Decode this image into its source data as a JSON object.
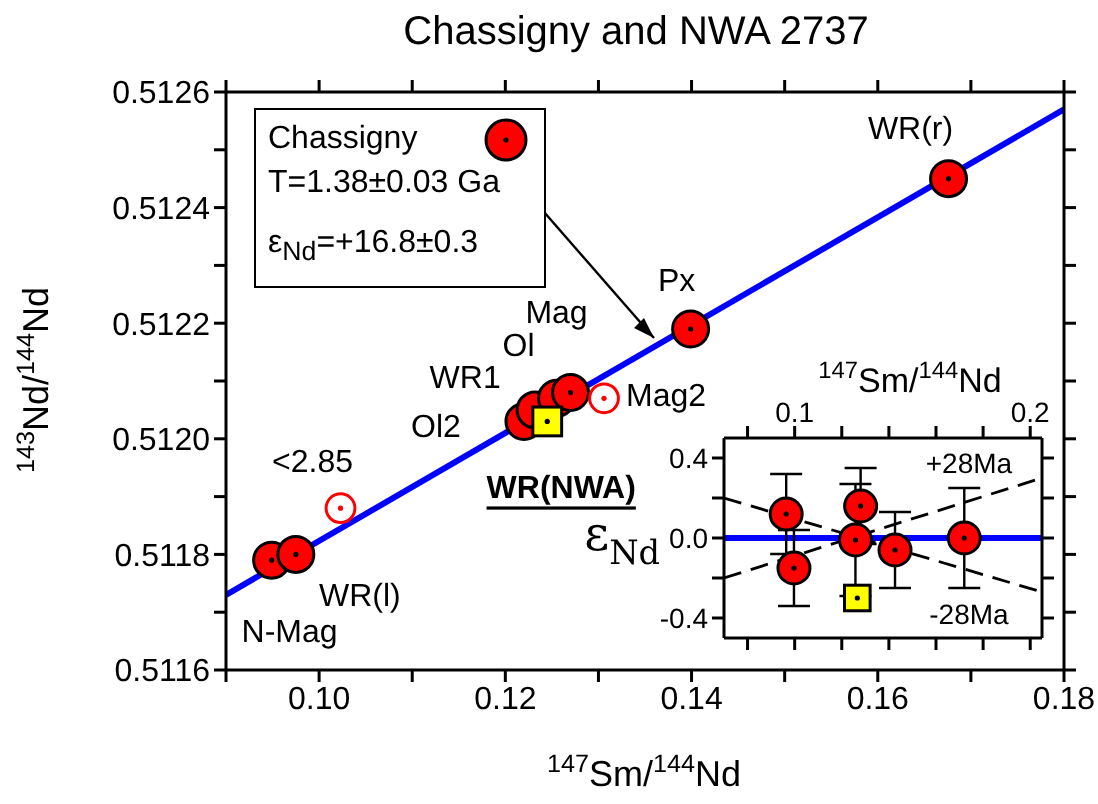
{
  "chart_data": [
    {
      "type": "scatter",
      "title": "Chassigny and NWA 2737",
      "xlabel": "$^{147}$Sm/$^{144}$Nd",
      "ylabel": "$^{143}$Nd/$^{144}$Nd",
      "xlim": [
        0.09,
        0.18
      ],
      "xticks": [
        {
          "value": 0.09,
          "label": null
        },
        {
          "value": 0.1,
          "label": "0.10"
        },
        {
          "value": 0.11,
          "label": null
        },
        {
          "value": 0.12,
          "label": "0.12"
        },
        {
          "value": 0.13,
          "label": null
        },
        {
          "value": 0.14,
          "label": "0.14"
        },
        {
          "value": 0.15,
          "label": null
        },
        {
          "value": 0.16,
          "label": "0.16"
        },
        {
          "value": 0.17,
          "label": null
        },
        {
          "value": 0.18,
          "label": "0.18"
        }
      ],
      "ylim": [
        0.5116,
        0.5126
      ],
      "yticks": [
        0.5116,
        {
          "value": 0.5117,
          "label": null
        },
        0.5118,
        {
          "value": 0.5119,
          "label": null
        },
        {
          "value": 0.512,
          "label": "0.5120"
        },
        {
          "value": 0.5121,
          "label": null
        },
        0.5122,
        {
          "value": 0.5123,
          "label": null
        },
        0.5124,
        {
          "value": 0.5125,
          "label": null
        },
        0.5126
      ],
      "grid": false,
      "legend": "top left",
      "marker": "circle",
      "series": [
        {
          "name": "Chassigny",
          "color": "#ff0000",
          "x": [
            0.0949,
            0.0975,
            0.122,
            0.1232,
            0.1255,
            0.127,
            0.1399,
            0.1676
          ],
          "values": [
            0.51179,
            0.5118,
            0.51203,
            0.51205,
            0.51207,
            0.51208,
            0.51219,
            0.51245
          ]
        },
        {
          "color": "#ff0000",
          "x": [
            0.1023,
            0.1306
          ],
          "values": [
            0.51188,
            0.51207
          ]
        },
        {
          "name": "WR(NWA)",
          "color": "#ffff00",
          "marker": "square",
          "x": [
            0.1245
          ],
          "values": [
            0.51203
          ]
        },
        {
          "type": "line",
          "color": "#0000ff",
          "marker": "none",
          "x": [
            0.09,
            0.18
          ],
          "values": [
            0.51173,
            0.51257
          ]
        }
      ],
      "annotations": [
        "T=1.38±0.03 Ga",
        "ε$_{Nd}$=+16.8±0.3",
        {
          "text": "N-Mag",
          "x": 0.0949,
          "y": 0.51179
        },
        {
          "text": "WR(l)",
          "x": 0.0975,
          "y": 0.5118
        },
        {
          "text": "<2.85",
          "x": 0.1023,
          "y": 0.51188
        },
        {
          "text": "Ol2",
          "x": 0.122,
          "y": 0.51203
        },
        {
          "text": "WR1",
          "x": 0.1232,
          "y": 0.51205
        },
        {
          "text": "Ol",
          "x": 0.1255,
          "y": 0.51207
        },
        {
          "text": "Mag",
          "x": 0.127,
          "y": 0.51208
        },
        {
          "text": "Mag2",
          "x": 0.1306,
          "y": 0.51207
        },
        {
          "text": "Px",
          "x": 0.1399,
          "y": 0.51219
        },
        {
          "text": "WR(r)",
          "x": 0.1676,
          "y": 0.51245
        }
      ]
    },
    {
      "type": "scatter",
      "xlabel": "$^{147}$Sm/$^{144}$Nd",
      "ylabel": "ε$_{Nd}$",
      "xlim": [
        0.07,
        0.205
      ],
      "xticks": [
        {
          "value": 0.08,
          "label": null
        },
        0.1,
        {
          "value": 0.12,
          "label": null
        },
        {
          "value": 0.14,
          "label": null
        },
        {
          "value": 0.16,
          "label": null
        },
        {
          "value": 0.18,
          "label": null
        },
        0.2
      ],
      "ylim": [
        -0.5,
        0.5
      ],
      "yticks": [
        -0.4,
        {
          "value": -0.2,
          "label": null
        },
        {
          "value": 0,
          "label": "0.0"
        },
        {
          "value": 0.2,
          "label": null
        },
        0.4
      ],
      "grid": false,
      "marker": "circle",
      "series": [
        {
          "type": "line",
          "color": "#0000ff",
          "marker": "none",
          "x": [
            0.07,
            0.205
          ],
          "values": [
            0,
            0
          ]
        },
        {
          "type": "line",
          "color": "#000000",
          "line_style": "dashed",
          "marker": "none",
          "x": [
            0.07,
            0.205
          ],
          "values": [
            -0.2,
            0.3
          ]
        },
        {
          "type": "line",
          "color": "#000000",
          "line_style": "dashed",
          "marker": "none",
          "x": [
            0.07,
            0.205
          ],
          "values": [
            0.2,
            -0.27
          ]
        },
        {
          "color": "#ff0000",
          "x": [
            0.0964,
            0.0997,
            0.1258,
            0.128,
            0.1426,
            0.172
          ],
          "values": [
            0.12,
            -0.15,
            -0.01,
            0.16,
            -0.06,
            0
          ],
          "errors": [
            0.2,
            0.19,
            0.28,
            0.19,
            0.19,
            0.25
          ]
        },
        {
          "color": "#ffff00",
          "marker": "square",
          "x": [
            0.1266
          ],
          "values": [
            -0.3
          ]
        }
      ],
      "annotations": [
        {
          "text": "+28Ma",
          "x": 0.174,
          "y": 0.185
        },
        {
          "text": "-28Ma",
          "x": 0.174,
          "y": -0.16
        }
      ]
    }
  ]
}
